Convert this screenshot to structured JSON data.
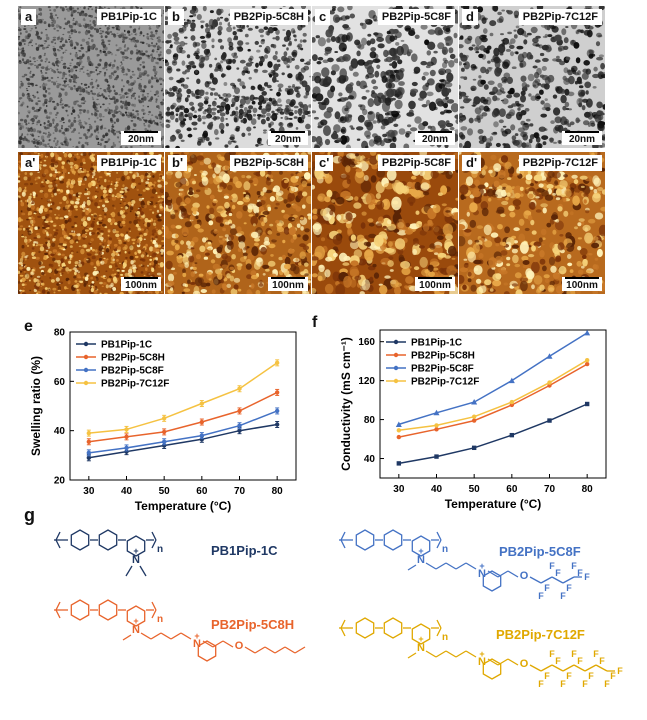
{
  "tem_panels": [
    {
      "label": "a",
      "name": "PB1Pip-1C",
      "scale": "20nm"
    },
    {
      "label": "b",
      "name": "PB2Pip-5C8H",
      "scale": "20nm"
    },
    {
      "label": "c",
      "name": "PB2Pip-5C8F",
      "scale": "20nm"
    },
    {
      "label": "d",
      "name": "PB2Pip-7C12F",
      "scale": "20nm"
    }
  ],
  "afm_panels": [
    {
      "label": "a'",
      "name": "PB1Pip-1C",
      "scale": "100nm"
    },
    {
      "label": "b'",
      "name": "PB2Pip-5C8H",
      "scale": "100nm"
    },
    {
      "label": "c'",
      "name": "PB2Pip-5C8F",
      "scale": "100nm"
    },
    {
      "label": "d'",
      "name": "PB2Pip-7C12F",
      "scale": "100nm"
    }
  ],
  "colors": {
    "navy": "#1f3864",
    "orange": "#e8642c",
    "blue": "#4472c4",
    "yellow": "#f5c242"
  },
  "chart_data": [
    {
      "panel": "e",
      "type": "line",
      "xlabel": "Temperature (°C)",
      "ylabel": "Swelling ratio (%)",
      "x": [
        30,
        40,
        50,
        60,
        70,
        80
      ],
      "xlim": [
        25,
        85
      ],
      "ylim": [
        20,
        80
      ],
      "xticks": [
        30,
        40,
        50,
        60,
        70,
        80
      ],
      "yticks": [
        20,
        40,
        60,
        80
      ],
      "legend": "top-left",
      "series": [
        {
          "name": "PB1Pip-1C",
          "color": "#1f3864",
          "values": [
            29,
            31.5,
            34,
            36.5,
            40,
            42.5
          ]
        },
        {
          "name": "PB2Pip-5C8H",
          "color": "#e8642c",
          "values": [
            35.5,
            37.5,
            39.5,
            43.5,
            48,
            55.5
          ]
        },
        {
          "name": "PB2Pip-5C8F",
          "color": "#4472c4",
          "values": [
            31,
            33,
            35.5,
            38,
            42,
            48
          ]
        },
        {
          "name": "PB2Pip-7C12F",
          "color": "#f5c242",
          "values": [
            39,
            40.5,
            45,
            51,
            57,
            67.5
          ]
        }
      ]
    },
    {
      "panel": "f",
      "type": "line",
      "xlabel": "Temperature (°C)",
      "ylabel": "Conductivity (mS cm⁻¹)",
      "x": [
        30,
        40,
        50,
        60,
        70,
        80
      ],
      "xlim": [
        25,
        85
      ],
      "ylim": [
        20,
        172
      ],
      "xticks": [
        30,
        40,
        50,
        60,
        70,
        80
      ],
      "yticks": [
        40,
        80,
        120,
        160
      ],
      "legend": "top-left",
      "series": [
        {
          "name": "PB1Pip-1C",
          "color": "#1f3864",
          "values": [
            35,
            42,
            51,
            64,
            79,
            96
          ]
        },
        {
          "name": "PB2Pip-5C8H",
          "color": "#e8642c",
          "values": [
            62,
            70,
            79,
            95,
            115,
            137
          ]
        },
        {
          "name": "PB2Pip-5C8F",
          "color": "#4472c4",
          "values": [
            75,
            87,
            98,
            120,
            145,
            169
          ]
        },
        {
          "name": "PB2Pip-7C12F",
          "color": "#f5c242",
          "values": [
            69,
            74,
            83,
            98,
            118,
            141
          ]
        }
      ]
    }
  ],
  "panel_letters": {
    "e": "e",
    "f": "f",
    "g": "g"
  },
  "structures": [
    {
      "name": "PB1Pip-1C",
      "color": "#1f3864"
    },
    {
      "name": "PB2Pip-5C8F",
      "color": "#4472c4"
    },
    {
      "name": "PB2Pip-5C8H",
      "color": "#e8642c"
    },
    {
      "name": "PB2Pip-7C12F",
      "color": "#e0a800"
    }
  ],
  "chem_text": {
    "n": "n",
    "N": "N",
    "plus": "+",
    "O": "O",
    "F": "F"
  }
}
